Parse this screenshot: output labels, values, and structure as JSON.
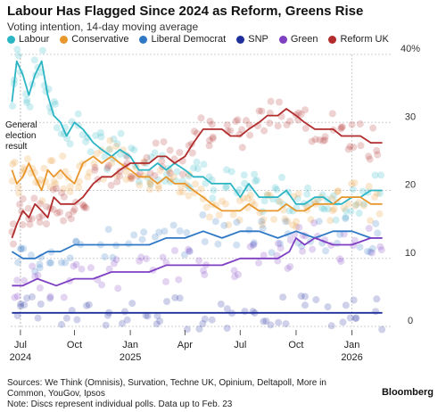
{
  "header": {
    "title": "Labour Has Flagged Since 2024 as Reform, Greens Rise",
    "subtitle": "Voting intention, 14-day moving average"
  },
  "annotation": {
    "line1": "General",
    "line2": "election",
    "line3": "result"
  },
  "footer": {
    "source": "Sources: We Think (Omnisis), Survation, Techne UK, Opinium, Deltapoll, More in Common, YouGov, Ipsos",
    "note": "Note: Discs represent individual polls. Data up to Feb. 23",
    "brand": "Bloomberg"
  },
  "chart_data": {
    "type": "line",
    "ylim": [
      0,
      40
    ],
    "grid": true,
    "yticks": [
      "0",
      "10",
      "20",
      "30",
      "40%"
    ],
    "xticks": [
      {
        "date": "2024-07-04",
        "label": "Jul",
        "year": "2024"
      },
      {
        "date": "2024-10-01",
        "label": "Oct",
        "year": ""
      },
      {
        "date": "2025-01-01",
        "label": "Jan",
        "year": "2025"
      },
      {
        "date": "2025-04-01",
        "label": "Apr",
        "year": ""
      },
      {
        "date": "2025-07-01",
        "label": "Jul",
        "year": ""
      },
      {
        "date": "2025-10-01",
        "label": "Oct",
        "year": ""
      },
      {
        "date": "2026-01-01",
        "label": "Jan",
        "year": "2026"
      }
    ],
    "xrange": [
      "2024-06-18",
      "2026-02-25"
    ],
    "election_date": "2024-07-04",
    "series": [
      {
        "name": "Labour",
        "color": "#2bb5c4",
        "x": [
          "2024-06-20",
          "2024-06-28",
          "2024-07-08",
          "2024-07-18",
          "2024-07-28",
          "2024-08-08",
          "2024-08-18",
          "2024-08-28",
          "2024-09-08",
          "2024-09-18",
          "2024-10-01",
          "2024-10-15",
          "2024-11-01",
          "2024-11-15",
          "2024-12-01",
          "2024-12-15",
          "2025-01-01",
          "2025-01-15",
          "2025-02-01",
          "2025-02-15",
          "2025-03-01",
          "2025-03-15",
          "2025-04-01",
          "2025-04-15",
          "2025-05-01",
          "2025-05-15",
          "2025-06-01",
          "2025-06-15",
          "2025-07-01",
          "2025-07-15",
          "2025-08-01",
          "2025-08-15",
          "2025-09-01",
          "2025-09-15",
          "2025-10-01",
          "2025-10-15",
          "2025-11-01",
          "2025-11-15",
          "2025-12-01",
          "2025-12-15",
          "2026-01-01",
          "2026-01-15",
          "2026-02-01",
          "2026-02-20"
        ],
        "values": [
          33,
          39,
          37,
          34,
          37,
          39,
          34,
          31,
          30,
          28,
          30,
          29,
          27,
          26,
          25,
          26,
          25,
          23,
          23,
          24,
          23,
          24,
          23,
          22,
          22,
          21,
          21,
          21,
          19,
          21,
          19,
          19,
          19,
          20,
          18,
          18,
          19,
          19,
          18,
          18,
          19,
          19,
          20,
          20
        ]
      },
      {
        "name": "Conservative",
        "color": "#e8972c",
        "x": [
          "2024-06-20",
          "2024-06-28",
          "2024-07-08",
          "2024-07-18",
          "2024-07-28",
          "2024-08-08",
          "2024-08-18",
          "2024-08-28",
          "2024-09-08",
          "2024-09-18",
          "2024-10-01",
          "2024-10-15",
          "2024-11-01",
          "2024-11-15",
          "2024-12-01",
          "2024-12-15",
          "2025-01-01",
          "2025-01-15",
          "2025-02-01",
          "2025-02-15",
          "2025-03-01",
          "2025-03-15",
          "2025-04-01",
          "2025-04-15",
          "2025-05-01",
          "2025-05-15",
          "2025-06-01",
          "2025-06-15",
          "2025-07-01",
          "2025-07-15",
          "2025-08-01",
          "2025-08-15",
          "2025-09-01",
          "2025-09-15",
          "2025-10-01",
          "2025-10-15",
          "2025-11-01",
          "2025-11-15",
          "2025-12-01",
          "2025-12-15",
          "2026-01-01",
          "2026-01-15",
          "2026-02-01",
          "2026-02-20"
        ],
        "values": [
          23,
          21,
          22,
          24,
          22,
          20,
          23,
          22,
          23,
          22,
          21,
          24,
          25,
          24,
          25,
          24,
          23,
          22,
          22,
          21,
          22,
          21,
          21,
          20,
          19,
          18,
          17,
          17,
          17,
          18,
          17,
          17,
          17,
          18,
          17,
          17,
          18,
          18,
          18,
          19,
          19,
          19,
          18,
          18
        ]
      },
      {
        "name": "Liberal Democrat",
        "color": "#2e78c6",
        "x": [
          "2024-06-20",
          "2024-07-08",
          "2024-07-28",
          "2024-08-18",
          "2024-09-08",
          "2024-10-01",
          "2024-11-01",
          "2024-12-01",
          "2025-01-01",
          "2025-02-01",
          "2025-03-01",
          "2025-04-01",
          "2025-05-01",
          "2025-06-01",
          "2025-07-01",
          "2025-08-01",
          "2025-09-01",
          "2025-10-01",
          "2025-11-01",
          "2025-12-01",
          "2026-01-01",
          "2026-02-01",
          "2026-02-20"
        ],
        "values": [
          11,
          10,
          10,
          11,
          11,
          12,
          12,
          12,
          12,
          12,
          13,
          13,
          14,
          13,
          14,
          14,
          13,
          14,
          13,
          14,
          14,
          13,
          13
        ]
      },
      {
        "name": "SNP",
        "color": "#1f2f9c",
        "x": [
          "2024-06-20",
          "2024-07-08",
          "2024-08-01",
          "2024-09-01",
          "2024-10-01",
          "2024-11-01",
          "2024-12-01",
          "2025-01-01",
          "2025-02-01",
          "2025-03-01",
          "2025-04-01",
          "2025-05-01",
          "2025-06-01",
          "2025-07-01",
          "2025-08-01",
          "2025-09-01",
          "2025-10-01",
          "2025-11-01",
          "2025-12-01",
          "2026-01-01",
          "2026-02-01",
          "2026-02-20"
        ],
        "values": [
          2,
          2,
          2,
          2,
          2,
          2,
          2,
          2,
          2,
          2,
          2,
          2,
          2,
          2,
          2,
          2,
          2,
          2,
          2,
          2,
          2,
          2
        ]
      },
      {
        "name": "Green",
        "color": "#7e3fc2",
        "x": [
          "2024-06-20",
          "2024-07-08",
          "2024-08-01",
          "2024-09-01",
          "2024-10-01",
          "2024-11-01",
          "2024-12-01",
          "2025-01-01",
          "2025-02-01",
          "2025-03-01",
          "2025-04-01",
          "2025-05-01",
          "2025-06-01",
          "2025-07-01",
          "2025-08-01",
          "2025-09-01",
          "2025-09-20",
          "2025-10-01",
          "2025-10-15",
          "2025-11-01",
          "2025-12-01",
          "2026-01-01",
          "2026-02-01",
          "2026-02-20"
        ],
        "values": [
          6,
          6,
          7,
          6,
          7,
          7,
          8,
          8,
          8,
          9,
          9,
          9,
          9,
          10,
          10,
          10,
          11,
          13,
          12,
          13,
          12,
          12,
          13,
          13
        ]
      },
      {
        "name": "Reform UK",
        "color": "#b12c2c",
        "x": [
          "2024-06-20",
          "2024-06-28",
          "2024-07-08",
          "2024-07-18",
          "2024-07-28",
          "2024-08-08",
          "2024-08-18",
          "2024-08-28",
          "2024-09-08",
          "2024-09-18",
          "2024-10-01",
          "2024-10-15",
          "2024-11-01",
          "2024-11-15",
          "2024-12-01",
          "2024-12-15",
          "2025-01-01",
          "2025-01-15",
          "2025-02-01",
          "2025-02-15",
          "2025-03-01",
          "2025-03-15",
          "2025-04-01",
          "2025-04-15",
          "2025-05-01",
          "2025-05-15",
          "2025-06-01",
          "2025-06-15",
          "2025-07-01",
          "2025-07-15",
          "2025-08-01",
          "2025-08-15",
          "2025-09-01",
          "2025-09-15",
          "2025-10-01",
          "2025-10-15",
          "2025-11-01",
          "2025-11-15",
          "2025-12-01",
          "2025-12-15",
          "2026-01-01",
          "2026-01-15",
          "2026-02-01",
          "2026-02-20"
        ],
        "values": [
          13,
          15,
          17,
          16,
          18,
          17,
          16,
          19,
          18,
          18,
          18,
          19,
          21,
          22,
          22,
          23,
          24,
          24,
          24,
          25,
          25,
          24,
          25,
          27,
          29,
          29,
          29,
          28,
          28,
          29,
          30,
          31,
          31,
          32,
          31,
          30,
          29,
          29,
          29,
          28,
          28,
          28,
          27,
          27
        ]
      }
    ]
  }
}
